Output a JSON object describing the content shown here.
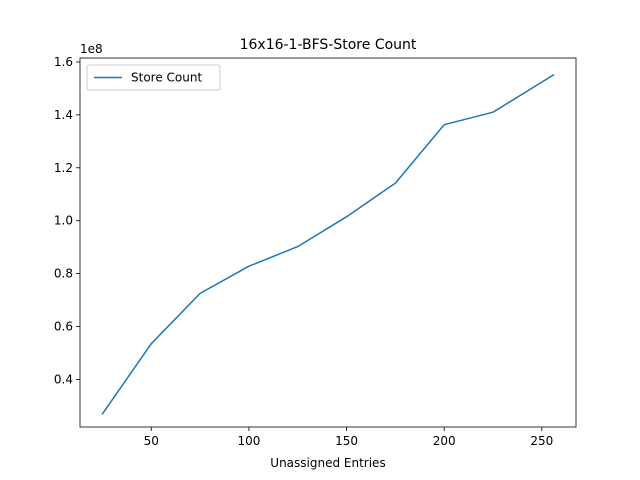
{
  "chart_data": {
    "type": "line",
    "title": "16x16-1-BFS-Store Count",
    "xlabel": "Unassigned Entries",
    "ylabel": "",
    "y_offset_label": "1e8",
    "xlim": [
      13.5,
      267.5
    ],
    "ylim": [
      0.22,
      1.615
    ],
    "x_ticks": [
      50,
      100,
      150,
      200,
      250
    ],
    "x_tick_labels": [
      "50",
      "100",
      "150",
      "200",
      "250"
    ],
    "y_ticks": [
      0.4,
      0.6,
      0.8,
      1.0,
      1.2,
      1.4,
      1.6
    ],
    "y_tick_labels": [
      "0.4",
      "0.6",
      "0.8",
      "1.0",
      "1.2",
      "1.4",
      "1.6"
    ],
    "grid": false,
    "legend_position": "top-left",
    "series": [
      {
        "name": "Store Count",
        "color": "#1f77b4",
        "x": [
          25,
          50,
          75,
          100,
          125,
          150,
          175,
          200,
          225,
          256
        ],
        "y": [
          0.27,
          0.535,
          0.725,
          0.828,
          0.902,
          1.015,
          1.142,
          1.363,
          1.41,
          1.551
        ]
      }
    ]
  }
}
